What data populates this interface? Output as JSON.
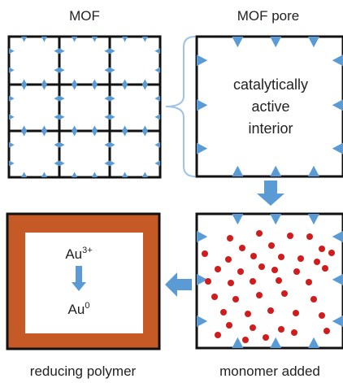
{
  "labels": {
    "mof": "MOF",
    "mof_pore": "MOF pore",
    "interior_line1": "catalytically",
    "interior_line2": "active",
    "interior_line3": "interior",
    "reducing_polymer": "reducing polymer",
    "monomer_added": "monomer added",
    "au_ion_base": "Au",
    "au_ion_sup": "3+",
    "au_metal_base": "Au",
    "au_metal_sup": "0"
  },
  "colors": {
    "outline": "#111111",
    "triangle": "#5B9BD5",
    "arrow": "#5B9BD5",
    "bracket": "#9DC3E6",
    "monomer_dot": "#D01C1C",
    "polymer": "#C65A26"
  },
  "icons": {
    "vertex": "blue-triangle",
    "monomer": "red-dot"
  }
}
